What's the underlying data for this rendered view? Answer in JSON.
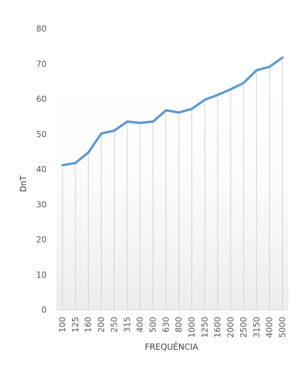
{
  "chart_data": {
    "type": "line",
    "title": "",
    "xlabel": "FREQUÊNCIA",
    "ylabel": "DnT",
    "categories": [
      "100",
      "125",
      "160",
      "200",
      "250",
      "315",
      "400",
      "500",
      "630",
      "800",
      "1000",
      "1250",
      "1600",
      "2000",
      "2500",
      "3150",
      "4000",
      "5000"
    ],
    "series": [
      {
        "values": [
          41.2,
          41.8,
          44.8,
          50.2,
          51.0,
          53.6,
          53.2,
          53.6,
          56.8,
          56.2,
          57.2,
          59.8,
          61.2,
          62.8,
          64.6,
          68.2,
          69.2,
          71.8
        ]
      }
    ],
    "yticks": [
      0,
      10,
      20,
      30,
      40,
      50,
      60,
      70,
      80
    ],
    "ylim": [
      0,
      80
    ],
    "grid": false,
    "legend": "none",
    "drop_lines": true,
    "colors": {
      "line": "#5b9bd5",
      "drop_line": "#d0d0d0",
      "axis": "#d9d9d9",
      "background_gradient": "#f2f2f2"
    }
  }
}
